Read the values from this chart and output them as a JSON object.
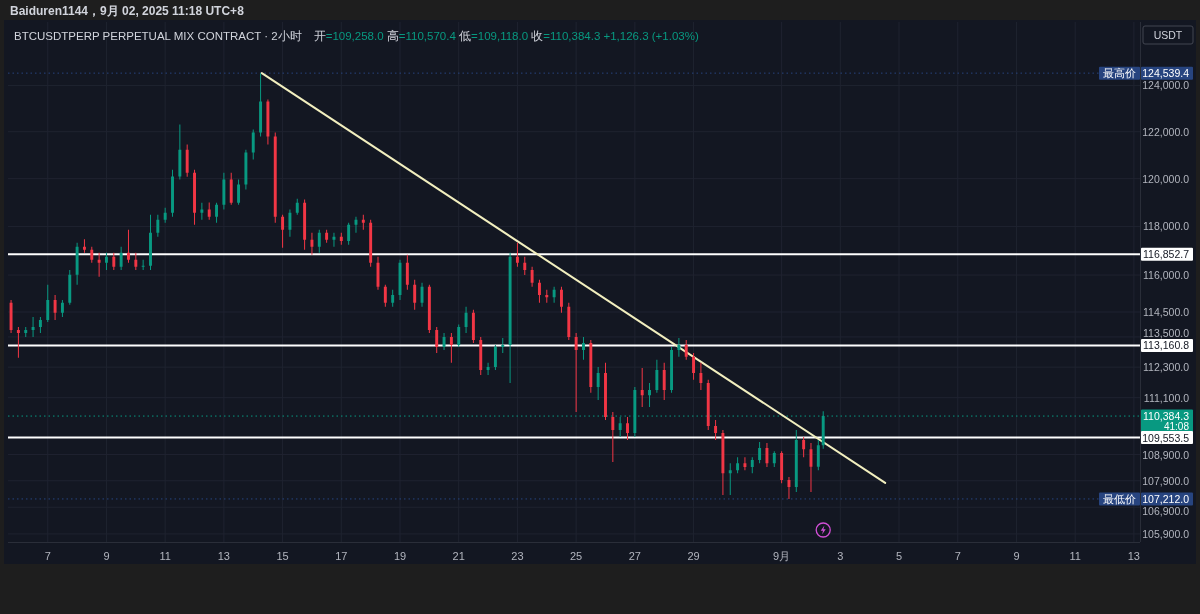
{
  "chart_data": {
    "type": "candlestick",
    "title": "BTCUSDTPERP PERPETUAL MIX CONTRACT · 2小时",
    "subtitle": "开=109,258.0 高=110,570.4 低=109,118.0 收=110,384.3 +1,126.3 (+1.03%)",
    "annotations": [
      "Baiduren1144，9月 02, 2025 11:18 UTC+8",
      "USDT",
      {
        "text": "最高价",
        "y": 124539.4
      },
      {
        "text": "最低价",
        "y": 107212.0
      }
    ],
    "x": [
      "2025-08-05T18:00",
      "2025-08-06T00:00",
      "2025-08-06T06:00",
      "2025-08-06T12:00",
      "2025-08-06T18:00",
      "2025-08-07T00:00",
      "2025-08-07T06:00",
      "2025-08-07T12:00",
      "2025-08-07T18:00",
      "2025-08-08T00:00",
      "2025-08-08T06:00",
      "2025-08-08T12:00",
      "2025-08-08T18:00",
      "2025-08-09T00:00",
      "2025-08-09T06:00",
      "2025-08-09T12:00",
      "2025-08-09T18:00",
      "2025-08-10T00:00",
      "2025-08-10T06:00",
      "2025-08-10T12:00",
      "2025-08-10T18:00",
      "2025-08-11T00:00",
      "2025-08-11T06:00",
      "2025-08-11T12:00",
      "2025-08-11T18:00",
      "2025-08-12T00:00",
      "2025-08-12T06:00",
      "2025-08-12T12:00",
      "2025-08-12T18:00",
      "2025-08-13T00:00",
      "2025-08-13T06:00",
      "2025-08-13T12:00",
      "2025-08-13T18:00",
      "2025-08-14T00:00",
      "2025-08-14T06:00",
      "2025-08-14T12:00",
      "2025-08-14T18:00",
      "2025-08-15T00:00",
      "2025-08-15T06:00",
      "2025-08-15T12:00",
      "2025-08-15T18:00",
      "2025-08-16T00:00",
      "2025-08-16T06:00",
      "2025-08-16T12:00",
      "2025-08-16T18:00",
      "2025-08-17T00:00",
      "2025-08-17T06:00",
      "2025-08-17T12:00",
      "2025-08-17T18:00",
      "2025-08-18T00:00",
      "2025-08-18T06:00",
      "2025-08-18T12:00",
      "2025-08-18T18:00",
      "2025-08-19T00:00",
      "2025-08-19T06:00",
      "2025-08-19T12:00",
      "2025-08-19T18:00",
      "2025-08-20T00:00",
      "2025-08-20T06:00",
      "2025-08-20T12:00",
      "2025-08-20T18:00",
      "2025-08-21T00:00",
      "2025-08-21T06:00",
      "2025-08-21T12:00",
      "2025-08-21T18:00",
      "2025-08-22T00:00",
      "2025-08-22T06:00",
      "2025-08-22T12:00",
      "2025-08-22T18:00",
      "2025-08-23T00:00",
      "2025-08-23T06:00",
      "2025-08-23T12:00",
      "2025-08-23T18:00",
      "2025-08-24T00:00",
      "2025-08-24T06:00",
      "2025-08-24T12:00",
      "2025-08-24T18:00",
      "2025-08-25T00:00",
      "2025-08-25T06:00",
      "2025-08-25T12:00",
      "2025-08-25T18:00",
      "2025-08-26T00:00",
      "2025-08-26T06:00",
      "2025-08-26T12:00",
      "2025-08-26T18:00",
      "2025-08-27T00:00",
      "2025-08-27T06:00",
      "2025-08-27T12:00",
      "2025-08-27T18:00",
      "2025-08-28T00:00",
      "2025-08-28T06:00",
      "2025-08-28T12:00",
      "2025-08-28T18:00",
      "2025-08-29T00:00",
      "2025-08-29T06:00",
      "2025-08-29T12:00",
      "2025-08-29T18:00",
      "2025-08-30T00:00",
      "2025-08-30T06:00",
      "2025-08-30T12:00",
      "2025-08-30T18:00",
      "2025-08-31T00:00",
      "2025-08-31T06:00",
      "2025-08-31T12:00",
      "2025-08-31T18:00",
      "2025-09-01T00:00",
      "2025-09-01T06:00",
      "2025-09-01T12:00",
      "2025-09-01T18:00",
      "2025-09-02T00:00",
      "2025-09-02T06:00",
      "2025-09-02T10:00"
    ],
    "ohlc": [
      [
        114870,
        114990,
        113660,
        113780
      ],
      [
        113780,
        113900,
        112670,
        113660
      ],
      [
        113660,
        113900,
        113500,
        113780
      ],
      [
        113780,
        114300,
        113500,
        113900
      ],
      [
        113900,
        114300,
        113660,
        114180
      ],
      [
        114180,
        115600,
        114100,
        114990
      ],
      [
        114990,
        115190,
        114180,
        114470
      ],
      [
        114470,
        114990,
        114300,
        114870
      ],
      [
        114870,
        116210,
        114790,
        116010
      ],
      [
        116010,
        117320,
        115600,
        117160
      ],
      [
        117160,
        117470,
        116910,
        117040
      ],
      [
        117040,
        117160,
        116500,
        116620
      ],
      [
        116620,
        116910,
        115930,
        116500
      ],
      [
        116500,
        116910,
        116210,
        116750
      ],
      [
        116750,
        116910,
        116210,
        116340
      ],
      [
        116340,
        117160,
        116210,
        116910
      ],
      [
        116910,
        117860,
        116500,
        116620
      ],
      [
        116620,
        116910,
        116210,
        116340
      ],
      [
        116340,
        116620,
        116210,
        116380
      ],
      [
        116380,
        118490,
        116210,
        117740
      ],
      [
        117740,
        118490,
        117570,
        118280
      ],
      [
        118280,
        118780,
        118150,
        118570
      ],
      [
        118570,
        120380,
        118400,
        120090
      ],
      [
        120090,
        122310,
        119960,
        121230
      ],
      [
        121230,
        121450,
        120080,
        120250
      ],
      [
        120250,
        120380,
        118070,
        118570
      ],
      [
        118570,
        118990,
        118280,
        118700
      ],
      [
        118700,
        119000,
        118280,
        118400
      ],
      [
        118400,
        118990,
        118150,
        118900
      ],
      [
        118900,
        120250,
        118700,
        119960
      ],
      [
        119960,
        120250,
        118900,
        118990
      ],
      [
        118990,
        119960,
        118900,
        119750
      ],
      [
        119750,
        121230,
        119540,
        121110
      ],
      [
        121110,
        122090,
        120810,
        121960
      ],
      [
        121960,
        124539.4,
        121790,
        123300
      ],
      [
        123300,
        123390,
        121450,
        121790
      ],
      [
        121790,
        121960,
        118150,
        118400
      ],
      [
        118400,
        118490,
        117120,
        117860
      ],
      [
        117860,
        118700,
        117570,
        118570
      ],
      [
        118570,
        119160,
        118490,
        118990
      ],
      [
        118990,
        119120,
        117040,
        117450
      ],
      [
        117450,
        117740,
        116830,
        117160
      ],
      [
        117160,
        117860,
        116910,
        117740
      ],
      [
        117740,
        117860,
        117320,
        117450
      ],
      [
        117450,
        117740,
        117160,
        117570
      ],
      [
        117570,
        117740,
        117240,
        117400
      ],
      [
        117400,
        118150,
        117240,
        118070
      ],
      [
        118070,
        118400,
        117740,
        118280
      ],
      [
        118280,
        118490,
        117860,
        118150
      ],
      [
        118150,
        118280,
        116340,
        116500
      ],
      [
        116500,
        116750,
        115400,
        115520
      ],
      [
        115520,
        115600,
        114710,
        114870
      ],
      [
        114870,
        115400,
        114710,
        115190
      ],
      [
        115190,
        116620,
        114990,
        116500
      ],
      [
        116500,
        116830,
        115400,
        115600
      ],
      [
        115600,
        115810,
        114590,
        114870
      ],
      [
        114870,
        115680,
        114710,
        115520
      ],
      [
        115520,
        115600,
        113660,
        113780
      ],
      [
        113780,
        113900,
        112860,
        113100
      ],
      [
        113100,
        113660,
        112980,
        113500
      ],
      [
        113500,
        113660,
        112470,
        113180
      ],
      [
        113180,
        114000,
        113100,
        113900
      ],
      [
        113900,
        114710,
        113660,
        114470
      ],
      [
        114470,
        114590,
        113260,
        113380
      ],
      [
        113380,
        113500,
        111990,
        112190
      ],
      [
        112190,
        112470,
        111990,
        112310
      ],
      [
        112310,
        113180,
        112190,
        113100
      ],
      [
        113100,
        113460,
        112860,
        113180
      ],
      [
        113180,
        116910,
        111680,
        116750
      ],
      [
        116750,
        117320,
        116340,
        116500
      ],
      [
        116500,
        116750,
        116000,
        116210
      ],
      [
        116210,
        116340,
        115520,
        115680
      ],
      [
        115680,
        115810,
        114870,
        115190
      ],
      [
        115190,
        115400,
        114870,
        115100
      ],
      [
        115100,
        115520,
        114870,
        115400
      ],
      [
        115400,
        115520,
        114470,
        114710
      ],
      [
        114710,
        114870,
        113380,
        113500
      ],
      [
        113500,
        113660,
        110540,
        112980
      ],
      [
        112980,
        113500,
        112590,
        113260
      ],
      [
        113260,
        113380,
        111290,
        111520
      ],
      [
        111520,
        112310,
        111010,
        112070
      ],
      [
        112070,
        112470,
        110230,
        110350
      ],
      [
        110350,
        110540,
        108610,
        109840
      ],
      [
        109840,
        110350,
        109570,
        110110
      ],
      [
        110110,
        110350,
        109460,
        109730
      ],
      [
        109730,
        111520,
        109570,
        111400
      ],
      [
        111400,
        112270,
        110740,
        111200
      ],
      [
        111200,
        111680,
        110740,
        111400
      ],
      [
        111400,
        112590,
        111290,
        112190
      ],
      [
        112190,
        112470,
        111010,
        111400
      ],
      [
        111400,
        113100,
        111290,
        112980
      ],
      [
        112980,
        113460,
        112710,
        113180
      ],
      [
        113180,
        113380,
        112590,
        112710
      ],
      [
        112710,
        112860,
        111800,
        112070
      ],
      [
        112070,
        112470,
        111400,
        111680
      ],
      [
        111680,
        111800,
        109840,
        110000
      ],
      [
        110000,
        110230,
        109460,
        109730
      ],
      [
        109730,
        109840,
        107360,
        108190
      ],
      [
        108190,
        108570,
        107360,
        108300
      ],
      [
        108300,
        108800,
        108190,
        108570
      ],
      [
        108570,
        108800,
        108300,
        108420
      ],
      [
        108420,
        108800,
        108190,
        108690
      ],
      [
        108690,
        109380,
        108570,
        109150
      ],
      [
        109150,
        109340,
        108420,
        108570
      ],
      [
        108570,
        109030,
        108420,
        108960
      ],
      [
        108960,
        109030,
        107810,
        107930
      ],
      [
        107930,
        108040,
        107212.0,
        107660
      ],
      [
        107660,
        109840,
        107470,
        109460
      ],
      [
        109460,
        109570,
        108800,
        109100
      ],
      [
        109100,
        109340,
        107470,
        108430
      ],
      [
        108430,
        109460,
        108300,
        109260
      ],
      [
        109258.0,
        110570.4,
        109118.0,
        110384.3
      ]
    ],
    "series": [
      {
        "type": "line",
        "x": [
          "2025-08-14T07:00",
          "2025-09-04T12:40"
        ],
        "values": [
          124539.4,
          107820
        ],
        "color": "#f2efbf"
      }
    ],
    "ref_lines": [
      {
        "axis": "y",
        "value": 124539.4,
        "label": "124,539.4",
        "color": "#27447f",
        "line_style": "dotted"
      },
      {
        "axis": "y",
        "value": 116852.7,
        "label": "116,852.7",
        "color": "#ffffff",
        "line_style": "solid"
      },
      {
        "axis": "y",
        "value": 113160.8,
        "label": "113,160.8",
        "color": "#ffffff",
        "line_style": "solid"
      },
      {
        "axis": "y",
        "value": 110384.3,
        "label": "110,384.3\n41:08",
        "color": "#089981",
        "line_style": "dotted"
      },
      {
        "axis": "y",
        "value": 109553.5,
        "label": "109,553.5",
        "color": "#ffffff",
        "line_style": "solid"
      },
      {
        "axis": "y",
        "value": 107212.0,
        "label": "107,212.0",
        "color": "#27447f",
        "line_style": "dotted"
      }
    ],
    "xlim": [
      "2025-08-05T15:30",
      "2025-09-13T05:00"
    ],
    "xticks": [
      {
        "value": "2025-08-07",
        "label": "7"
      },
      {
        "value": "2025-08-09",
        "label": "9"
      },
      {
        "value": "2025-08-11",
        "label": "11"
      },
      {
        "value": "2025-08-13",
        "label": "13"
      },
      {
        "value": "2025-08-15",
        "label": "15"
      },
      {
        "value": "2025-08-17",
        "label": "17"
      },
      {
        "value": "2025-08-19",
        "label": "19"
      },
      {
        "value": "2025-08-21",
        "label": "21"
      },
      {
        "value": "2025-08-23",
        "label": "23"
      },
      {
        "value": "2025-08-25",
        "label": "25"
      },
      {
        "value": "2025-08-27",
        "label": "27"
      },
      {
        "value": "2025-08-29",
        "label": "29"
      },
      {
        "value": "2025-09-01",
        "label": "9月"
      },
      {
        "value": "2025-09-03",
        "label": "3"
      },
      {
        "value": "2025-09-05",
        "label": "5"
      },
      {
        "value": "2025-09-07",
        "label": "7"
      },
      {
        "value": "2025-09-09",
        "label": "9"
      },
      {
        "value": "2025-09-11",
        "label": "11"
      },
      {
        "value": "2025-09-13",
        "label": "13"
      }
    ],
    "ylim": [
      105600,
      126800
    ],
    "yticks": [
      {
        "value": 105900,
        "label": "105,900.0"
      },
      {
        "value": 106900,
        "label": "106,900.0"
      },
      {
        "value": 107900,
        "label": "107,900.0"
      },
      {
        "value": 108900,
        "label": "108,900.0"
      },
      {
        "value": 111100,
        "label": "111,100.0"
      },
      {
        "value": 112300,
        "label": "112,300.0"
      },
      {
        "value": 113500,
        "label": "113,500.0"
      },
      {
        "value": 114500,
        "label": "114,500.0"
      },
      {
        "value": 116000,
        "label": "116,000.0"
      },
      {
        "value": 118000,
        "label": "118,000.0"
      },
      {
        "value": 120000,
        "label": "120,000.0"
      },
      {
        "value": 122000,
        "label": "122,000.0"
      },
      {
        "value": 124000,
        "label": "124,000.0"
      }
    ],
    "log": true,
    "grid": true
  }
}
